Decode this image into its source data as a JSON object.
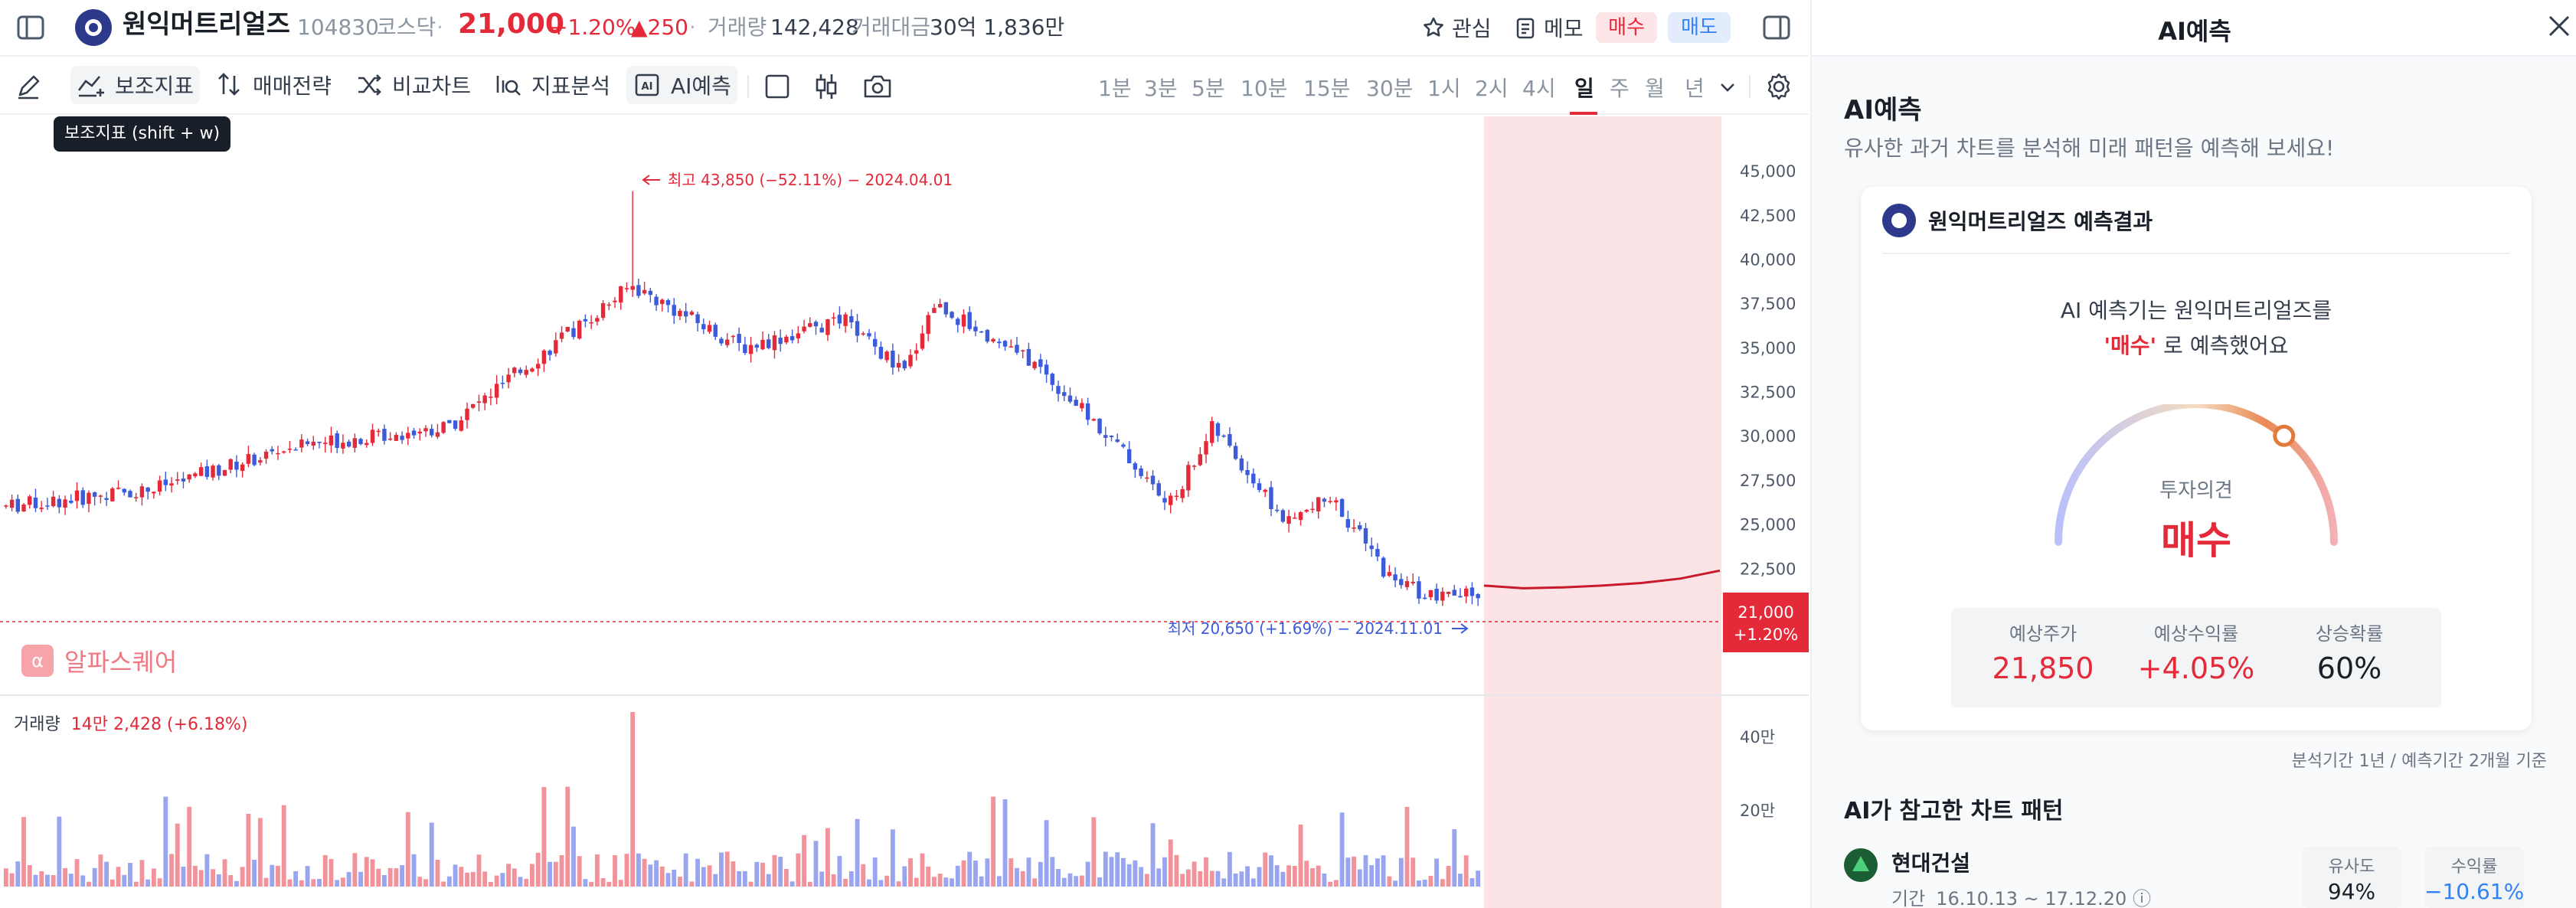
{
  "header": {
    "stock_name": "원익머트리얼즈",
    "stock_code": "104830",
    "market": "코스닥",
    "separator": "·",
    "price": "21,000",
    "change_pct": "+1.20%",
    "change_amt": "▲250",
    "volume_label": "거래량",
    "volume": "142,428",
    "amount_label": "거래대금",
    "amount": "30억 1,836만",
    "fav_label": "관심",
    "memo_label": "메모",
    "buy_label": "매수",
    "sell_label": "매도"
  },
  "toolbar": {
    "indicator_label": "보조지표",
    "strategy_label": "매매전략",
    "compare_label": "비교차트",
    "analysis_label": "지표분석",
    "ai_label": "AI예측",
    "tooltip": "보조지표 (shift + w)",
    "periods": [
      "1분",
      "3분",
      "5분",
      "10분",
      "15분",
      "30분",
      "1시",
      "2시",
      "4시",
      "일",
      "주",
      "월",
      "년"
    ],
    "active_period": "일"
  },
  "chart": {
    "high_label": "최고 43,850 (−52.11%) − 2024.04.01",
    "low_label": "최저 20,650 (+1.69%) − 2024.11.01",
    "price_axis": [
      "45,000",
      "42,500",
      "40,000",
      "37,500",
      "35,000",
      "32,500",
      "30,000",
      "27,500",
      "25,000",
      "22,500"
    ],
    "current_price_tag": "21,000",
    "current_change_tag": "+1.20%",
    "volume_axis": [
      "40만",
      "20만"
    ],
    "volume_title": "거래량",
    "volume_value": "14만 2,428 (+6.18%)",
    "watermark": "알파스퀘어",
    "watermark_icon": "α",
    "colors": {
      "up": "#e42939",
      "down": "#3b5bdb",
      "forecast_bg": "#fbe3e6",
      "vol_up": "#f2939b",
      "vol_down": "#9aa5f0"
    }
  },
  "panel": {
    "title": "AI예측",
    "heading": "AI예측",
    "subheading": "유사한 과거 차트를 분석해 미래 패턴을 예측해 보세요!",
    "card_title": "원익머트리얼즈 예측결과",
    "message_line1": "AI 예측기는 원익머트리얼즈를",
    "message_highlight": "'매수'",
    "message_line2_rest": " 로 예측했어요",
    "gauge_label": "투자의견",
    "gauge_value": "매수",
    "gauge_level": 0.72,
    "stats": [
      {
        "label": "예상주가",
        "value": "21,850"
      },
      {
        "label": "예상수익률",
        "value": "+4.05%"
      },
      {
        "label": "상승확률",
        "value": "60%"
      }
    ],
    "note": "분석기간 1년 / 예측기간 2개월 기준",
    "patterns_heading": "AI가 참고한 차트 패턴",
    "pattern": {
      "name": "현대건설",
      "period_label": "기간",
      "period": "16.10.13 ~ 17.12.20",
      "similarity_label": "유사도",
      "similarity": "94%",
      "return_label": "수익률",
      "return": "−10.61%"
    }
  },
  "chart_data": {
    "type": "candlestick",
    "y_axis_range": [
      20000,
      46000
    ],
    "high": 43850,
    "low": 20650,
    "last": 21000,
    "trend_anchors": [
      [
        0,
        26000
      ],
      [
        0.1,
        27000
      ],
      [
        0.2,
        29500
      ],
      [
        0.3,
        30500
      ],
      [
        0.37,
        35000
      ],
      [
        0.425,
        38500
      ],
      [
        0.5,
        35000
      ],
      [
        0.57,
        36500
      ],
      [
        0.61,
        33500
      ],
      [
        0.63,
        37500
      ],
      [
        0.7,
        34000
      ],
      [
        0.76,
        29000
      ],
      [
        0.79,
        26000
      ],
      [
        0.82,
        30500
      ],
      [
        0.87,
        25000
      ],
      [
        0.9,
        26500
      ],
      [
        0.94,
        22000
      ],
      [
        0.97,
        20800
      ],
      [
        1.0,
        21000
      ]
    ],
    "forecast": [
      21000,
      20850,
      20900,
      21000,
      21150,
      21400,
      21850
    ]
  }
}
